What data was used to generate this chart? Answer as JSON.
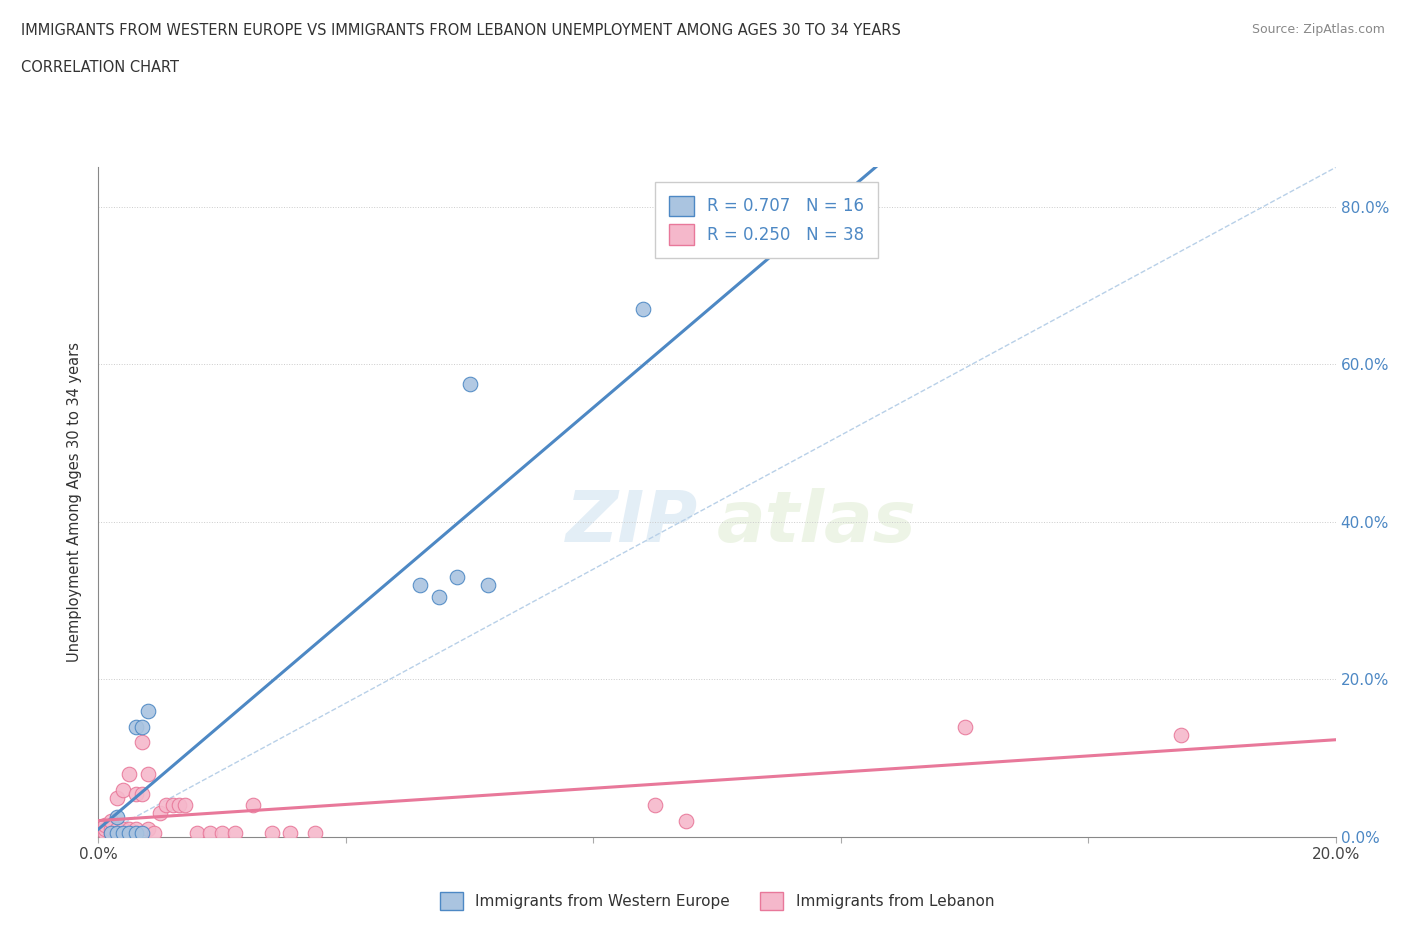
{
  "title_line1": "IMMIGRANTS FROM WESTERN EUROPE VS IMMIGRANTS FROM LEBANON UNEMPLOYMENT AMONG AGES 30 TO 34 YEARS",
  "title_line2": "CORRELATION CHART",
  "source": "Source: ZipAtlas.com",
  "ylabel": "Unemployment Among Ages 30 to 34 years",
  "xlim": [
    0.0,
    0.2
  ],
  "ylim": [
    0.0,
    0.85
  ],
  "western_europe_R": 0.707,
  "western_europe_N": 16,
  "lebanon_R": 0.25,
  "lebanon_N": 38,
  "western_europe_color": "#aac4e0",
  "lebanon_color": "#f5b8cb",
  "western_europe_line_color": "#4d88c4",
  "lebanon_line_color": "#e8789a",
  "diagonal_color": "#b8d0e8",
  "watermark_zip": "ZIP",
  "watermark_atlas": "atlas",
  "we_x": [
    0.002,
    0.003,
    0.003,
    0.004,
    0.005,
    0.006,
    0.006,
    0.007,
    0.007,
    0.008,
    0.052,
    0.055,
    0.058,
    0.06,
    0.063,
    0.088
  ],
  "we_y": [
    0.005,
    0.005,
    0.025,
    0.005,
    0.005,
    0.005,
    0.14,
    0.14,
    0.005,
    0.16,
    0.32,
    0.305,
    0.33,
    0.575,
    0.32,
    0.67
  ],
  "lb_x": [
    0.001,
    0.001,
    0.001,
    0.002,
    0.002,
    0.002,
    0.003,
    0.003,
    0.003,
    0.004,
    0.004,
    0.005,
    0.005,
    0.005,
    0.006,
    0.006,
    0.007,
    0.007,
    0.008,
    0.008,
    0.009,
    0.01,
    0.011,
    0.012,
    0.013,
    0.014,
    0.016,
    0.018,
    0.02,
    0.022,
    0.025,
    0.028,
    0.031,
    0.035,
    0.09,
    0.095,
    0.14,
    0.175
  ],
  "lb_y": [
    0.005,
    0.01,
    0.015,
    0.005,
    0.01,
    0.02,
    0.005,
    0.01,
    0.05,
    0.01,
    0.06,
    0.005,
    0.01,
    0.08,
    0.01,
    0.055,
    0.055,
    0.12,
    0.01,
    0.08,
    0.005,
    0.03,
    0.04,
    0.04,
    0.04,
    0.04,
    0.005,
    0.005,
    0.005,
    0.005,
    0.04,
    0.005,
    0.005,
    0.005,
    0.04,
    0.02,
    0.14,
    0.13
  ]
}
